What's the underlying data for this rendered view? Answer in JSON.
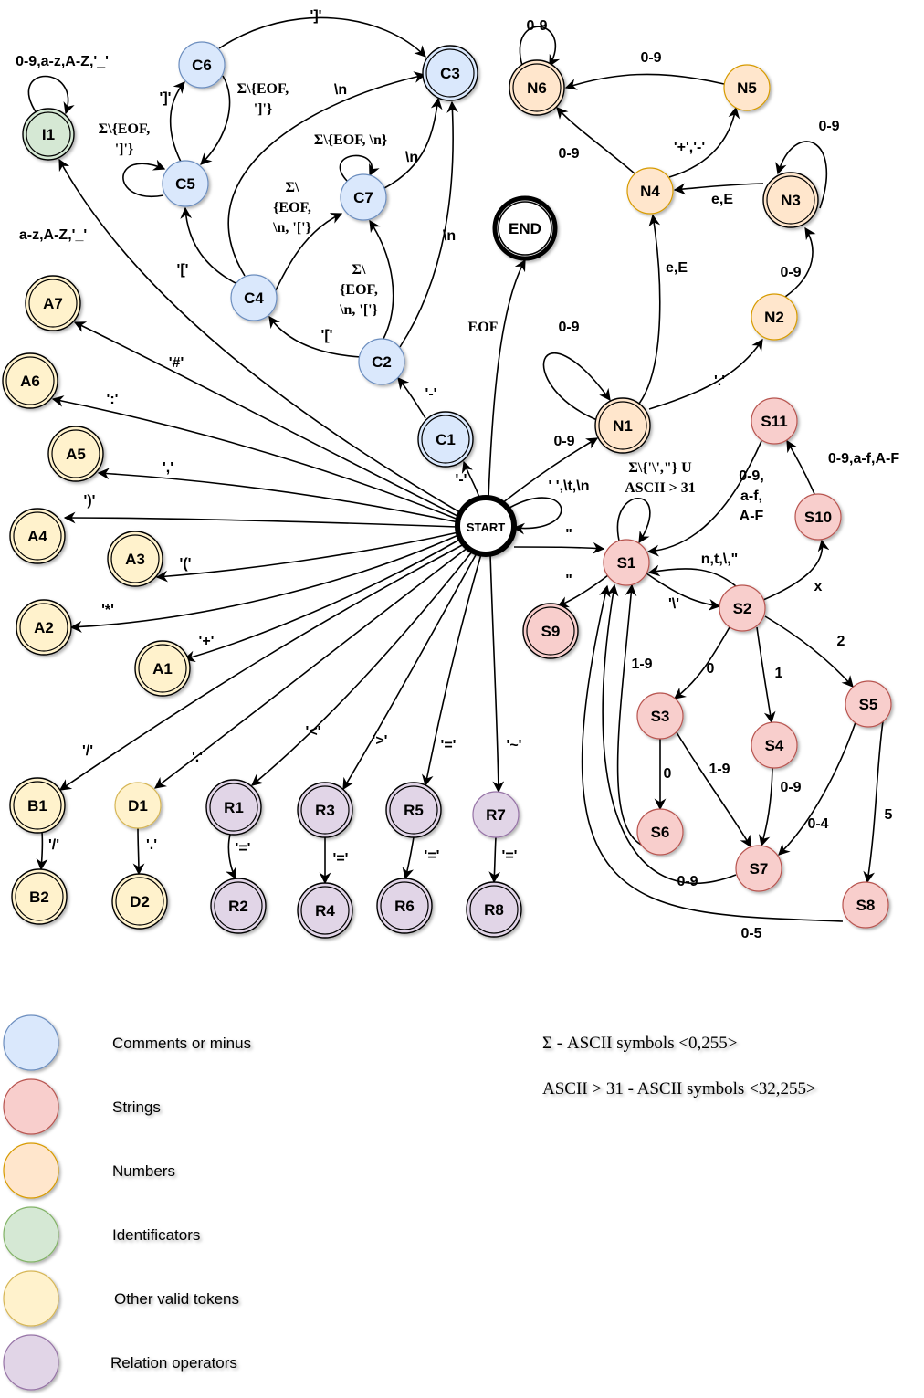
{
  "colors": {
    "comments": "#dae8fc",
    "strings": "#f8cecc",
    "numbers": "#ffe6cc",
    "identifiers": "#d5e8d4",
    "other": "#fff2cc",
    "relations": "#e1d5e7",
    "start": "#ffffff"
  },
  "states": [
    {
      "id": "I1",
      "label": "I1",
      "group": "identifiers",
      "final": true
    },
    {
      "id": "C6",
      "label": "C6",
      "group": "comments",
      "final": false
    },
    {
      "id": "C3",
      "label": "C3",
      "group": "comments",
      "final": true
    },
    {
      "id": "C5",
      "label": "C5",
      "group": "comments",
      "final": false
    },
    {
      "id": "C7",
      "label": "C7",
      "group": "comments",
      "final": false
    },
    {
      "id": "C4",
      "label": "C4",
      "group": "comments",
      "final": false
    },
    {
      "id": "C2",
      "label": "C2",
      "group": "comments",
      "final": false
    },
    {
      "id": "C1",
      "label": "C1",
      "group": "comments",
      "final": true
    },
    {
      "id": "END",
      "label": "END",
      "group": "start",
      "final": true
    },
    {
      "id": "N6",
      "label": "N6",
      "group": "numbers",
      "final": true
    },
    {
      "id": "N5",
      "label": "N5",
      "group": "numbers",
      "final": false
    },
    {
      "id": "N4",
      "label": "N4",
      "group": "numbers",
      "final": false
    },
    {
      "id": "N3",
      "label": "N3",
      "group": "numbers",
      "final": true
    },
    {
      "id": "N2",
      "label": "N2",
      "group": "numbers",
      "final": false
    },
    {
      "id": "N1",
      "label": "N1",
      "group": "numbers",
      "final": true
    },
    {
      "id": "A7",
      "label": "A7",
      "group": "other",
      "final": true
    },
    {
      "id": "A6",
      "label": "A6",
      "group": "other",
      "final": true
    },
    {
      "id": "A5",
      "label": "A5",
      "group": "other",
      "final": true
    },
    {
      "id": "A4",
      "label": "A4",
      "group": "other",
      "final": true
    },
    {
      "id": "A3",
      "label": "A3",
      "group": "other",
      "final": true
    },
    {
      "id": "A2",
      "label": "A2",
      "group": "other",
      "final": true
    },
    {
      "id": "A1",
      "label": "A1",
      "group": "other",
      "final": true
    },
    {
      "id": "START",
      "label": "START",
      "group": "start",
      "final": false,
      "start": true
    },
    {
      "id": "S11",
      "label": "S11",
      "group": "strings",
      "final": false
    },
    {
      "id": "S10",
      "label": "S10",
      "group": "strings",
      "final": false
    },
    {
      "id": "S1",
      "label": "S1",
      "group": "strings",
      "final": false
    },
    {
      "id": "S9",
      "label": "S9",
      "group": "strings",
      "final": true
    },
    {
      "id": "S2",
      "label": "S2",
      "group": "strings",
      "final": false
    },
    {
      "id": "S3",
      "label": "S3",
      "group": "strings",
      "final": false
    },
    {
      "id": "S4",
      "label": "S4",
      "group": "strings",
      "final": false
    },
    {
      "id": "S5",
      "label": "S5",
      "group": "strings",
      "final": false
    },
    {
      "id": "S6",
      "label": "S6",
      "group": "strings",
      "final": false
    },
    {
      "id": "S7",
      "label": "S7",
      "group": "strings",
      "final": false
    },
    {
      "id": "S8",
      "label": "S8",
      "group": "strings",
      "final": false
    },
    {
      "id": "B1",
      "label": "B1",
      "group": "other",
      "final": true
    },
    {
      "id": "B2",
      "label": "B2",
      "group": "other",
      "final": true
    },
    {
      "id": "D1",
      "label": "D1",
      "group": "other",
      "final": false
    },
    {
      "id": "D2",
      "label": "D2",
      "group": "other",
      "final": true
    },
    {
      "id": "R1",
      "label": "R1",
      "group": "relations",
      "final": true
    },
    {
      "id": "R2",
      "label": "R2",
      "group": "relations",
      "final": true
    },
    {
      "id": "R3",
      "label": "R3",
      "group": "relations",
      "final": true
    },
    {
      "id": "R4",
      "label": "R4",
      "group": "relations",
      "final": true
    },
    {
      "id": "R5",
      "label": "R5",
      "group": "relations",
      "final": true
    },
    {
      "id": "R6",
      "label": "R6",
      "group": "relations",
      "final": true
    },
    {
      "id": "R7",
      "label": "R7",
      "group": "relations",
      "final": false
    },
    {
      "id": "R8",
      "label": "R8",
      "group": "relations",
      "final": true
    }
  ],
  "edge_labels": {
    "i1_loop": "0-9,a-z,A-Z,'_'",
    "start_i1": "a-z,A-Z,'_'",
    "c6_c3": "']'",
    "c5_c6": "']'",
    "c6_c5": "Σ\\{EOF,",
    "c6_c5b": "']'}",
    "c5_loop": "Σ\\{EOF,",
    "c5_loopb": "']'}",
    "c4_c3": "\\n",
    "c7_loop": "Σ\\{EOF, \\n}",
    "c7_c3": "\\n",
    "c4_c7": [
      "Σ\\",
      "{EOF,",
      "\\n, '['}"
    ],
    "c4_c5": "'['",
    "c2_c7": [
      "Σ\\",
      "{EOF,",
      "\\n, '['}"
    ],
    "c2_c3": "\\n",
    "c2_c4": "'['",
    "c1_c2": "'-'",
    "start_c1": "'-'",
    "start_end": "EOF",
    "n6_loop": "0-9",
    "n5_n6": "0-9",
    "n4_n6": "0-9",
    "n4_n5": "'+','-'",
    "n3_loop": "0-9",
    "n3_n4": "e,E",
    "n2_n3": "0-9",
    "n1_n4": "e,E",
    "n1_loop": "0-9",
    "n1_n2": "'.'",
    "start_n1": "0-9",
    "start_a7": "'#'",
    "start_a6": "':'",
    "start_a5": "','",
    "start_a4": "')'",
    "start_a3": "'('",
    "start_a2": "'*'",
    "start_a1": "'+'",
    "start_loop": "' ',\\t,\\n",
    "start_s1": "\"",
    "s1_loop": [
      "Σ\\{'\\',\"} U",
      "ASCII > 31"
    ],
    "s1_s9": "\"",
    "s1_s2": "'\\'",
    "s2_s1": "n,t,\\,\"",
    "s11_s1": [
      "0-9,",
      "a-f,",
      "A-F"
    ],
    "s10_s11": "0-9,a-f,A-F",
    "s2_s10": "x",
    "s2_s3": "0",
    "s2_s4": "1",
    "s2_s5": "2",
    "s3_s6": "0",
    "s3_s7": "1-9",
    "s4_s7": "0-9",
    "s5_s7": "0-4",
    "s5_s8": "5",
    "s6_s1": "1-9",
    "s7_s1": "0-9",
    "s8_s1": "0-5",
    "start_b1": "'/'",
    "b1_b2": "'/'",
    "start_d1": "'.'",
    "d1_d2": "'.'",
    "start_r1": "'<'",
    "r1_r2": "'='",
    "start_r3": "'>'",
    "r3_r4": "'='",
    "start_r5": "'='",
    "r5_r6": "'='",
    "start_r7": "'~'",
    "r7_r8": "'='"
  },
  "legend": [
    {
      "group": "comments",
      "label": "Comments or minus"
    },
    {
      "group": "strings",
      "label": "Strings"
    },
    {
      "group": "numbers",
      "label": "Numbers"
    },
    {
      "group": "identifiers",
      "label": "Identificators"
    },
    {
      "group": "other",
      "label": "Other valid tokens"
    },
    {
      "group": "relations",
      "label": "Relation operators"
    }
  ],
  "notes": [
    "Σ - ASCII symbols <0,255>",
    "ASCII > 31  - ASCII symbols <32,255>"
  ]
}
